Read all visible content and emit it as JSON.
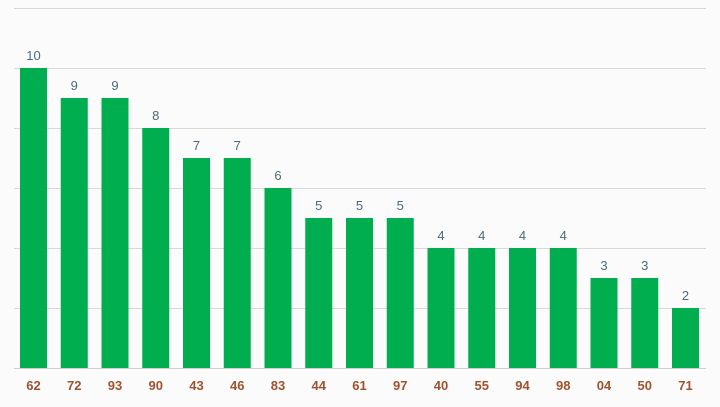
{
  "chart_data": {
    "type": "bar",
    "categories": [
      "62",
      "72",
      "93",
      "90",
      "43",
      "46",
      "83",
      "44",
      "61",
      "97",
      "40",
      "55",
      "94",
      "98",
      "04",
      "50",
      "71"
    ],
    "values": [
      10,
      9,
      9,
      8,
      7,
      7,
      6,
      5,
      5,
      5,
      4,
      4,
      4,
      4,
      3,
      3,
      2
    ],
    "ylim": [
      0,
      12
    ],
    "grid": true,
    "colors": {
      "bar": "#00ae4f",
      "value_label": "#4a6a7a",
      "category_label": "#a0522d"
    }
  }
}
